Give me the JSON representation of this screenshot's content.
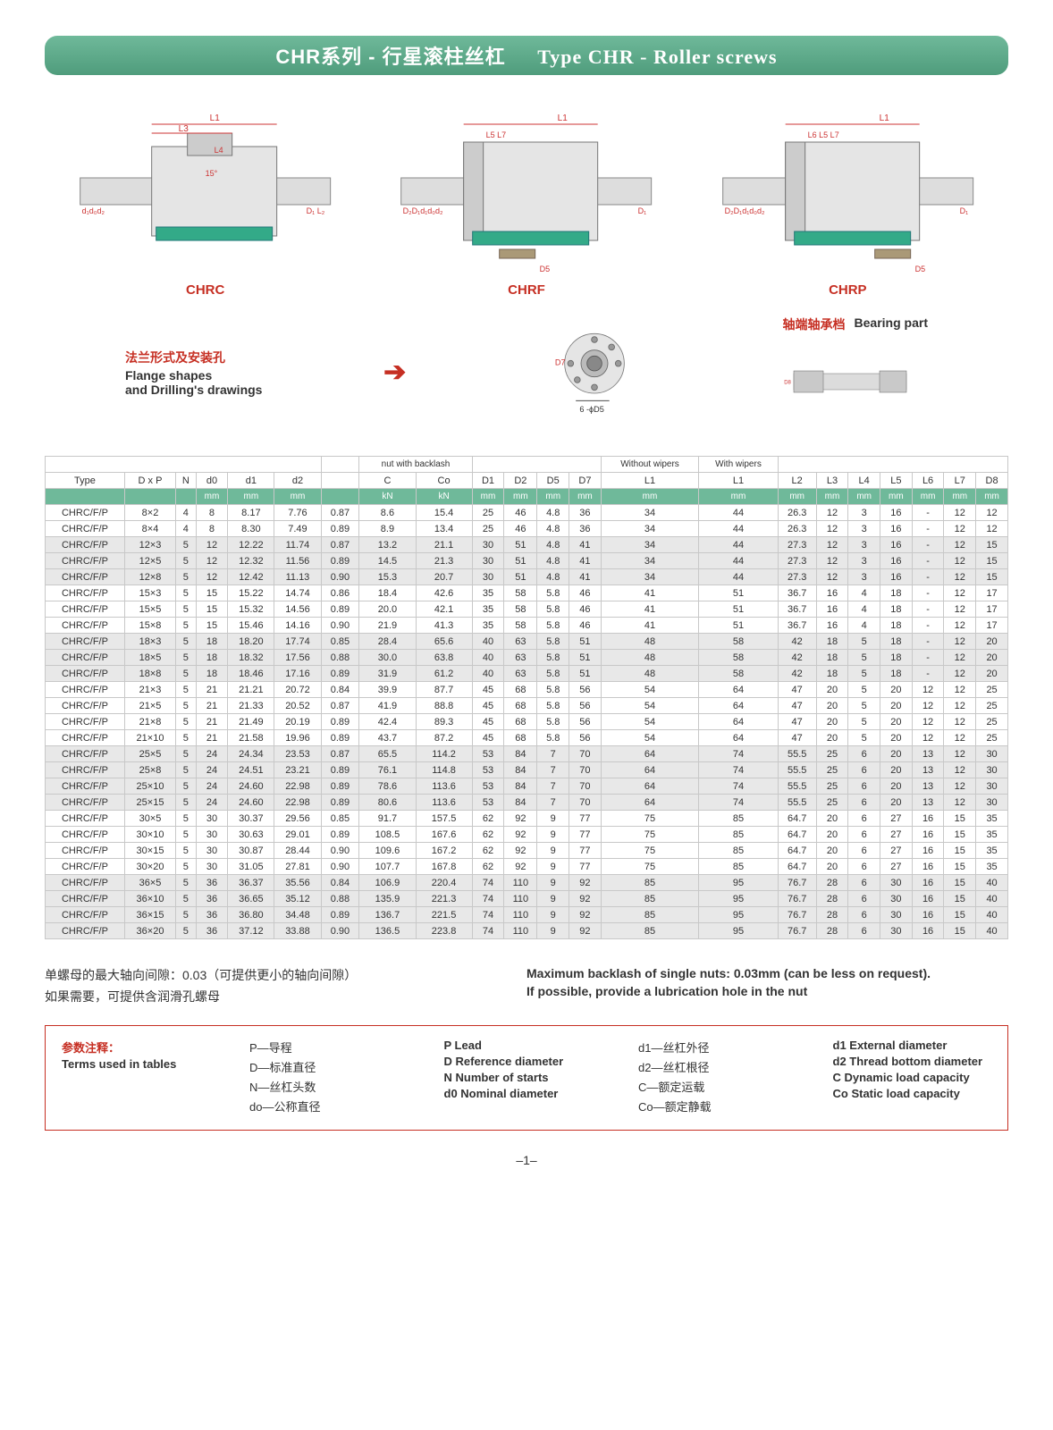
{
  "header": {
    "cn": "CHR系列 - 行星滚柱丝杠",
    "en": "Type CHR - Roller screws"
  },
  "diagram_labels": {
    "c": "CHRC",
    "f": "CHRF",
    "p": "CHRP"
  },
  "flange": {
    "cn_red": "法兰形式及安装孔",
    "bold1": "Flange shapes",
    "bold2": "and Drilling's drawings",
    "callout1": "D7",
    "callout2": "6 -ϕD5"
  },
  "bearing": {
    "cn_red": "轴端轴承档",
    "bold": "Bearing part",
    "callout": "D8"
  },
  "table": {
    "group_nut": "nut with backlash",
    "group_nowipe": "Without wipers",
    "group_wipe": "With wipers",
    "cols": [
      "Type",
      "D x P",
      "N",
      "d0",
      "d1",
      "d2",
      "",
      "C",
      "Co",
      "D1",
      "D2",
      "D5",
      "D7",
      "L1",
      "L1",
      "L2",
      "L3",
      "L4",
      "L5",
      "L6",
      "L7",
      "D8"
    ],
    "units": [
      "",
      "",
      "",
      "mm",
      "mm",
      "mm",
      "",
      "kN",
      "kN",
      "mm",
      "mm",
      "mm",
      "mm",
      "mm",
      "mm",
      "mm",
      "mm",
      "mm",
      "mm",
      "mm",
      "mm",
      "mm"
    ],
    "rows": [
      {
        "g": "a",
        "v": [
          "CHRC/F/P",
          "8×2",
          "4",
          "8",
          "8.17",
          "7.76",
          "0.87",
          "8.6",
          "15.4",
          "25",
          "46",
          "4.8",
          "36",
          "34",
          "44",
          "26.3",
          "12",
          "3",
          "16",
          "-",
          "12",
          "12"
        ]
      },
      {
        "g": "a",
        "v": [
          "CHRC/F/P",
          "8×4",
          "4",
          "8",
          "8.30",
          "7.49",
          "0.89",
          "8.9",
          "13.4",
          "25",
          "46",
          "4.8",
          "36",
          "34",
          "44",
          "26.3",
          "12",
          "3",
          "16",
          "-",
          "12",
          "12"
        ]
      },
      {
        "g": "b",
        "v": [
          "CHRC/F/P",
          "12×3",
          "5",
          "12",
          "12.22",
          "11.74",
          "0.87",
          "13.2",
          "21.1",
          "30",
          "51",
          "4.8",
          "41",
          "34",
          "44",
          "27.3",
          "12",
          "3",
          "16",
          "-",
          "12",
          "15"
        ]
      },
      {
        "g": "b",
        "v": [
          "CHRC/F/P",
          "12×5",
          "5",
          "12",
          "12.32",
          "11.56",
          "0.89",
          "14.5",
          "21.3",
          "30",
          "51",
          "4.8",
          "41",
          "34",
          "44",
          "27.3",
          "12",
          "3",
          "16",
          "-",
          "12",
          "15"
        ]
      },
      {
        "g": "b",
        "v": [
          "CHRC/F/P",
          "12×8",
          "5",
          "12",
          "12.42",
          "11.13",
          "0.90",
          "15.3",
          "20.7",
          "30",
          "51",
          "4.8",
          "41",
          "34",
          "44",
          "27.3",
          "12",
          "3",
          "16",
          "-",
          "12",
          "15"
        ]
      },
      {
        "g": "a",
        "v": [
          "CHRC/F/P",
          "15×3",
          "5",
          "15",
          "15.22",
          "14.74",
          "0.86",
          "18.4",
          "42.6",
          "35",
          "58",
          "5.8",
          "46",
          "41",
          "51",
          "36.7",
          "16",
          "4",
          "18",
          "-",
          "12",
          "17"
        ]
      },
      {
        "g": "a",
        "v": [
          "CHRC/F/P",
          "15×5",
          "5",
          "15",
          "15.32",
          "14.56",
          "0.89",
          "20.0",
          "42.1",
          "35",
          "58",
          "5.8",
          "46",
          "41",
          "51",
          "36.7",
          "16",
          "4",
          "18",
          "-",
          "12",
          "17"
        ]
      },
      {
        "g": "a",
        "v": [
          "CHRC/F/P",
          "15×8",
          "5",
          "15",
          "15.46",
          "14.16",
          "0.90",
          "21.9",
          "41.3",
          "35",
          "58",
          "5.8",
          "46",
          "41",
          "51",
          "36.7",
          "16",
          "4",
          "18",
          "-",
          "12",
          "17"
        ]
      },
      {
        "g": "b",
        "v": [
          "CHRC/F/P",
          "18×3",
          "5",
          "18",
          "18.20",
          "17.74",
          "0.85",
          "28.4",
          "65.6",
          "40",
          "63",
          "5.8",
          "51",
          "48",
          "58",
          "42",
          "18",
          "5",
          "18",
          "-",
          "12",
          "20"
        ]
      },
      {
        "g": "b",
        "v": [
          "CHRC/F/P",
          "18×5",
          "5",
          "18",
          "18.32",
          "17.56",
          "0.88",
          "30.0",
          "63.8",
          "40",
          "63",
          "5.8",
          "51",
          "48",
          "58",
          "42",
          "18",
          "5",
          "18",
          "-",
          "12",
          "20"
        ]
      },
      {
        "g": "b",
        "v": [
          "CHRC/F/P",
          "18×8",
          "5",
          "18",
          "18.46",
          "17.16",
          "0.89",
          "31.9",
          "61.2",
          "40",
          "63",
          "5.8",
          "51",
          "48",
          "58",
          "42",
          "18",
          "5",
          "18",
          "-",
          "12",
          "20"
        ]
      },
      {
        "g": "a",
        "v": [
          "CHRC/F/P",
          "21×3",
          "5",
          "21",
          "21.21",
          "20.72",
          "0.84",
          "39.9",
          "87.7",
          "45",
          "68",
          "5.8",
          "56",
          "54",
          "64",
          "47",
          "20",
          "5",
          "20",
          "12",
          "12",
          "25"
        ]
      },
      {
        "g": "a",
        "v": [
          "CHRC/F/P",
          "21×5",
          "5",
          "21",
          "21.33",
          "20.52",
          "0.87",
          "41.9",
          "88.8",
          "45",
          "68",
          "5.8",
          "56",
          "54",
          "64",
          "47",
          "20",
          "5",
          "20",
          "12",
          "12",
          "25"
        ]
      },
      {
        "g": "a",
        "v": [
          "CHRC/F/P",
          "21×8",
          "5",
          "21",
          "21.49",
          "20.19",
          "0.89",
          "42.4",
          "89.3",
          "45",
          "68",
          "5.8",
          "56",
          "54",
          "64",
          "47",
          "20",
          "5",
          "20",
          "12",
          "12",
          "25"
        ]
      },
      {
        "g": "a",
        "v": [
          "CHRC/F/P",
          "21×10",
          "5",
          "21",
          "21.58",
          "19.96",
          "0.89",
          "43.7",
          "87.2",
          "45",
          "68",
          "5.8",
          "56",
          "54",
          "64",
          "47",
          "20",
          "5",
          "20",
          "12",
          "12",
          "25"
        ]
      },
      {
        "g": "b",
        "v": [
          "CHRC/F/P",
          "25×5",
          "5",
          "24",
          "24.34",
          "23.53",
          "0.87",
          "65.5",
          "114.2",
          "53",
          "84",
          "7",
          "70",
          "64",
          "74",
          "55.5",
          "25",
          "6",
          "20",
          "13",
          "12",
          "30"
        ]
      },
      {
        "g": "b",
        "v": [
          "CHRC/F/P",
          "25×8",
          "5",
          "24",
          "24.51",
          "23.21",
          "0.89",
          "76.1",
          "114.8",
          "53",
          "84",
          "7",
          "70",
          "64",
          "74",
          "55.5",
          "25",
          "6",
          "20",
          "13",
          "12",
          "30"
        ]
      },
      {
        "g": "b",
        "v": [
          "CHRC/F/P",
          "25×10",
          "5",
          "24",
          "24.60",
          "22.98",
          "0.89",
          "78.6",
          "113.6",
          "53",
          "84",
          "7",
          "70",
          "64",
          "74",
          "55.5",
          "25",
          "6",
          "20",
          "13",
          "12",
          "30"
        ]
      },
      {
        "g": "b",
        "v": [
          "CHRC/F/P",
          "25×15",
          "5",
          "24",
          "24.60",
          "22.98",
          "0.89",
          "80.6",
          "113.6",
          "53",
          "84",
          "7",
          "70",
          "64",
          "74",
          "55.5",
          "25",
          "6",
          "20",
          "13",
          "12",
          "30"
        ]
      },
      {
        "g": "a",
        "v": [
          "CHRC/F/P",
          "30×5",
          "5",
          "30",
          "30.37",
          "29.56",
          "0.85",
          "91.7",
          "157.5",
          "62",
          "92",
          "9",
          "77",
          "75",
          "85",
          "64.7",
          "20",
          "6",
          "27",
          "16",
          "15",
          "35"
        ]
      },
      {
        "g": "a",
        "v": [
          "CHRC/F/P",
          "30×10",
          "5",
          "30",
          "30.63",
          "29.01",
          "0.89",
          "108.5",
          "167.6",
          "62",
          "92",
          "9",
          "77",
          "75",
          "85",
          "64.7",
          "20",
          "6",
          "27",
          "16",
          "15",
          "35"
        ]
      },
      {
        "g": "a",
        "v": [
          "CHRC/F/P",
          "30×15",
          "5",
          "30",
          "30.87",
          "28.44",
          "0.90",
          "109.6",
          "167.2",
          "62",
          "92",
          "9",
          "77",
          "75",
          "85",
          "64.7",
          "20",
          "6",
          "27",
          "16",
          "15",
          "35"
        ]
      },
      {
        "g": "a",
        "v": [
          "CHRC/F/P",
          "30×20",
          "5",
          "30",
          "31.05",
          "27.81",
          "0.90",
          "107.7",
          "167.8",
          "62",
          "92",
          "9",
          "77",
          "75",
          "85",
          "64.7",
          "20",
          "6",
          "27",
          "16",
          "15",
          "35"
        ]
      },
      {
        "g": "b",
        "v": [
          "CHRC/F/P",
          "36×5",
          "5",
          "36",
          "36.37",
          "35.56",
          "0.84",
          "106.9",
          "220.4",
          "74",
          "110",
          "9",
          "92",
          "85",
          "95",
          "76.7",
          "28",
          "6",
          "30",
          "16",
          "15",
          "40"
        ]
      },
      {
        "g": "b",
        "v": [
          "CHRC/F/P",
          "36×10",
          "5",
          "36",
          "36.65",
          "35.12",
          "0.88",
          "135.9",
          "221.3",
          "74",
          "110",
          "9",
          "92",
          "85",
          "95",
          "76.7",
          "28",
          "6",
          "30",
          "16",
          "15",
          "40"
        ]
      },
      {
        "g": "b",
        "v": [
          "CHRC/F/P",
          "36×15",
          "5",
          "36",
          "36.80",
          "34.48",
          "0.89",
          "136.7",
          "221.5",
          "74",
          "110",
          "9",
          "92",
          "85",
          "95",
          "76.7",
          "28",
          "6",
          "30",
          "16",
          "15",
          "40"
        ]
      },
      {
        "g": "b",
        "v": [
          "CHRC/F/P",
          "36×20",
          "5",
          "36",
          "37.12",
          "33.88",
          "0.90",
          "136.5",
          "223.8",
          "74",
          "110",
          "9",
          "92",
          "85",
          "95",
          "76.7",
          "28",
          "6",
          "30",
          "16",
          "15",
          "40"
        ]
      }
    ]
  },
  "notes": {
    "left1": "单螺母的最大轴向间隙：0.03（可提供更小的轴向间隙）",
    "left2": "如果需要，可提供含润滑孔螺母",
    "right1": "Maximum backlash of single nuts: 0.03mm (can be less on request).",
    "right2": "If possible, provide a lubrication hole in the nut"
  },
  "terms": {
    "title_cn": "参数注释：",
    "title_en": "Terms used in tables",
    "col2": [
      "P—导程",
      "D—标准直径",
      "N—丝杠头数",
      "do—公称直径"
    ],
    "col3": [
      "P   Lead",
      "D   Reference diameter",
      "N   Number of starts",
      "d0  Nominal diameter"
    ],
    "col4": [
      "d1—丝杠外径",
      "d2—丝杠根径",
      "C—额定运载",
      "Co—额定静载"
    ],
    "col5": [
      "d1  External diameter",
      "d2  Thread bottom diameter",
      "C   Dynamic load capacity",
      "Co  Static load capacity"
    ]
  },
  "page_num": "–1–"
}
